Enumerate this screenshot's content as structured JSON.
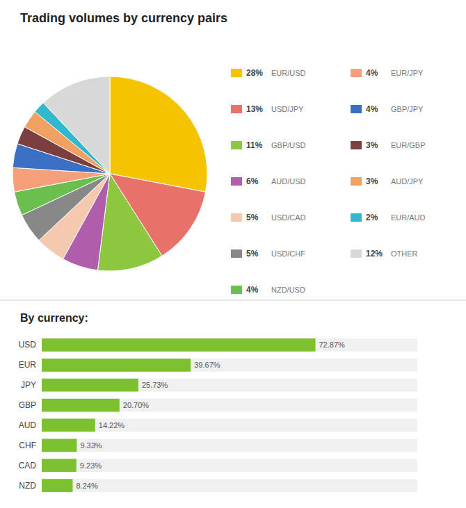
{
  "chart_data": [
    {
      "type": "pie",
      "title": "Trading volumes by currency pairs",
      "categories": [
        "EUR/USD",
        "USD/JPY",
        "GBP/USD",
        "AUD/USD",
        "USD/CAD",
        "USD/CHF",
        "NZD/USD",
        "EUR/JPY",
        "GBP/JPY",
        "EUR/GBP",
        "AUD/JPY",
        "EUR/AUD",
        "OTHER"
      ],
      "values": [
        28,
        13,
        11,
        6,
        5,
        5,
        4,
        4,
        4,
        3,
        3,
        2,
        12
      ],
      "value_labels": [
        "28%",
        "13%",
        "11%",
        "6%",
        "5%",
        "5%",
        "4%",
        "4%",
        "4%",
        "3%",
        "3%",
        "2%",
        "12%"
      ],
      "colors": [
        "#F5C400",
        "#E8726A",
        "#8DC63F",
        "#B05EAB",
        "#F5C8B0",
        "#888888",
        "#6BBF4E",
        "#F5A07A",
        "#3A6FC4",
        "#7B3F3F",
        "#F0A060",
        "#30B8CC",
        "#D8D8D8"
      ],
      "legend": "right"
    },
    {
      "type": "bar",
      "title": "By currency:",
      "orientation": "horizontal",
      "categories": [
        "USD",
        "EUR",
        "JPY",
        "GBP",
        "AUD",
        "CHF",
        "CAD",
        "NZD"
      ],
      "values": [
        72.87,
        39.67,
        25.73,
        20.7,
        14.22,
        9.33,
        9.23,
        8.24
      ],
      "value_labels": [
        "72.87%",
        "39.67%",
        "25.73%",
        "20.70%",
        "14.22%",
        "9.33%",
        "9.23%",
        "8.24%"
      ],
      "color": "#7DC030",
      "xlim": [
        0,
        100
      ],
      "grid": false,
      "tick_labels": "y",
      "data_labels": true
    }
  ]
}
